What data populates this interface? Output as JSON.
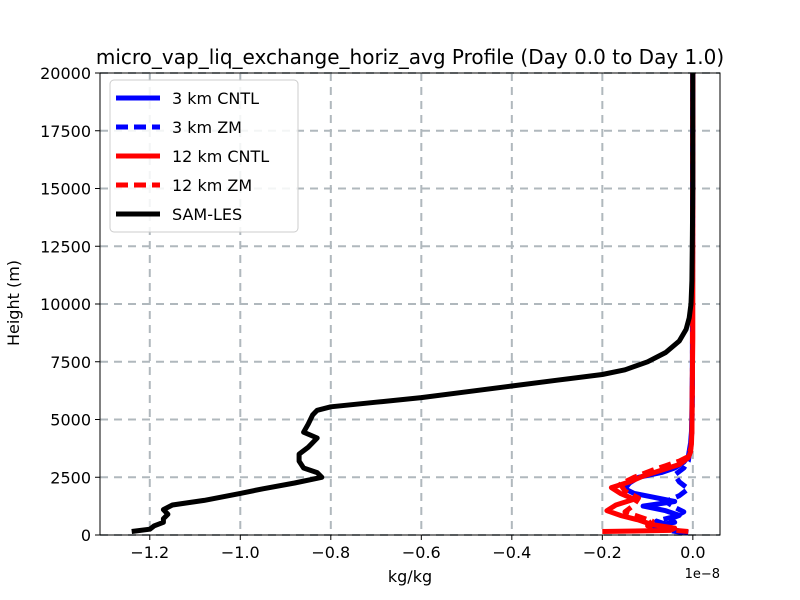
{
  "chart_data": {
    "type": "line",
    "title": "micro_vap_liq_exchange_horiz_avg Profile (Day 0.0 to Day 1.0)",
    "xlabel": "kg/kg",
    "ylabel": "Height (m)",
    "x_offset_label": "1e−8",
    "xlim": [
      -1.31,
      0.06
    ],
    "ylim": [
      0,
      20000
    ],
    "xticks": [
      -1.2,
      -1.0,
      -0.8,
      -0.6,
      -0.4,
      -0.2,
      0.0
    ],
    "xtick_labels": [
      "−1.2",
      "−1.0",
      "−0.8",
      "−0.6",
      "−0.4",
      "−0.2",
      "0.0"
    ],
    "yticks": [
      0,
      2500,
      5000,
      7500,
      10000,
      12500,
      15000,
      17500,
      20000
    ],
    "ytick_labels": [
      "0",
      "2500",
      "5000",
      "7500",
      "10000",
      "12500",
      "15000",
      "17500",
      "20000"
    ],
    "grid": true,
    "legend_position": "upper-left",
    "series": [
      {
        "name": "3 km CNTL",
        "color": "#0000ff",
        "dash": "solid",
        "points": [
          [
            -0.01,
            100
          ],
          [
            -0.05,
            250
          ],
          [
            -0.09,
            400
          ],
          [
            -0.04,
            550
          ],
          [
            -0.05,
            700
          ],
          [
            -0.03,
            850
          ],
          [
            -0.06,
            1050
          ],
          [
            -0.11,
            1250
          ],
          [
            -0.04,
            1450
          ],
          [
            -0.09,
            1650
          ],
          [
            -0.13,
            1800
          ],
          [
            -0.15,
            2000
          ],
          [
            -0.14,
            2250
          ],
          [
            -0.12,
            2500
          ],
          [
            -0.07,
            2700
          ],
          [
            -0.04,
            2900
          ],
          [
            -0.02,
            3150
          ],
          [
            -0.01,
            3400
          ],
          [
            -0.005,
            4000
          ],
          [
            -0.003,
            4500
          ],
          [
            -0.002,
            5500
          ],
          [
            -0.001,
            7000
          ],
          [
            0,
            20000
          ]
        ]
      },
      {
        "name": "3 km ZM",
        "color": "#0000ff",
        "dash": "dashed",
        "points": [
          [
            -0.02,
            100
          ],
          [
            -0.07,
            250
          ],
          [
            -0.05,
            400
          ],
          [
            -0.08,
            600
          ],
          [
            -0.04,
            800
          ],
          [
            -0.02,
            1000
          ],
          [
            -0.04,
            1200
          ],
          [
            -0.06,
            1450
          ],
          [
            -0.03,
            1700
          ],
          [
            -0.01,
            2000
          ],
          [
            -0.03,
            2300
          ],
          [
            -0.04,
            2600
          ],
          [
            -0.02,
            2900
          ],
          [
            -0.01,
            3200
          ],
          [
            -0.005,
            3800
          ],
          [
            -0.002,
            4500
          ],
          [
            -0.001,
            6000
          ],
          [
            0,
            20000
          ]
        ]
      },
      {
        "name": "12 km CNTL",
        "color": "#ff0000",
        "dash": "solid",
        "points": [
          [
            -0.2,
            150
          ],
          [
            -0.05,
            200
          ],
          [
            -0.04,
            300
          ],
          [
            -0.09,
            450
          ],
          [
            -0.12,
            650
          ],
          [
            -0.16,
            850
          ],
          [
            -0.19,
            1050
          ],
          [
            -0.17,
            1300
          ],
          [
            -0.13,
            1550
          ],
          [
            -0.16,
            1800
          ],
          [
            -0.18,
            2050
          ],
          [
            -0.14,
            2300
          ],
          [
            -0.11,
            2550
          ],
          [
            -0.07,
            2800
          ],
          [
            -0.03,
            3050
          ],
          [
            -0.01,
            3350
          ],
          [
            -0.005,
            3600
          ],
          [
            -0.003,
            4000
          ],
          [
            -0.002,
            4500
          ],
          [
            -0.001,
            7000
          ],
          [
            0,
            8500
          ],
          [
            0,
            20000
          ]
        ]
      },
      {
        "name": "12 km ZM",
        "color": "#ff0000",
        "dash": "dashed",
        "points": [
          [
            -0.01,
            150
          ],
          [
            -0.07,
            250
          ],
          [
            -0.1,
            400
          ],
          [
            -0.09,
            600
          ],
          [
            -0.12,
            800
          ],
          [
            -0.15,
            1000
          ],
          [
            -0.13,
            1300
          ],
          [
            -0.12,
            1600
          ],
          [
            -0.15,
            1900
          ],
          [
            -0.16,
            2200
          ],
          [
            -0.13,
            2500
          ],
          [
            -0.09,
            2800
          ],
          [
            -0.06,
            3000
          ],
          [
            -0.03,
            3200
          ],
          [
            -0.01,
            3400
          ],
          [
            -0.004,
            3800
          ],
          [
            -0.002,
            4500
          ],
          [
            -0.001,
            6500
          ],
          [
            0,
            20000
          ]
        ]
      },
      {
        "name": "SAM-LES",
        "color": "#000000",
        "dash": "solid",
        "points": [
          [
            -1.24,
            150
          ],
          [
            -1.2,
            250
          ],
          [
            -1.19,
            400
          ],
          [
            -1.17,
            550
          ],
          [
            -1.17,
            700
          ],
          [
            -1.16,
            900
          ],
          [
            -1.17,
            1100
          ],
          [
            -1.15,
            1300
          ],
          [
            -1.08,
            1500
          ],
          [
            -1.0,
            1800
          ],
          [
            -0.95,
            2000
          ],
          [
            -0.88,
            2250
          ],
          [
            -0.82,
            2500
          ],
          [
            -0.83,
            2700
          ],
          [
            -0.86,
            2900
          ],
          [
            -0.87,
            3200
          ],
          [
            -0.87,
            3500
          ],
          [
            -0.85,
            3800
          ],
          [
            -0.83,
            4200
          ],
          [
            -0.86,
            4450
          ],
          [
            -0.85,
            4800
          ],
          [
            -0.84,
            5200
          ],
          [
            -0.83,
            5400
          ],
          [
            -0.8,
            5550
          ],
          [
            -0.7,
            5750
          ],
          [
            -0.6,
            5950
          ],
          [
            -0.5,
            6200
          ],
          [
            -0.4,
            6450
          ],
          [
            -0.3,
            6700
          ],
          [
            -0.2,
            6950
          ],
          [
            -0.15,
            7150
          ],
          [
            -0.1,
            7500
          ],
          [
            -0.06,
            7900
          ],
          [
            -0.03,
            8400
          ],
          [
            -0.015,
            8900
          ],
          [
            -0.008,
            9400
          ],
          [
            -0.004,
            10000
          ],
          [
            -0.002,
            11000
          ],
          [
            -0.001,
            13000
          ],
          [
            0,
            15000
          ],
          [
            0,
            20000
          ]
        ]
      }
    ]
  }
}
